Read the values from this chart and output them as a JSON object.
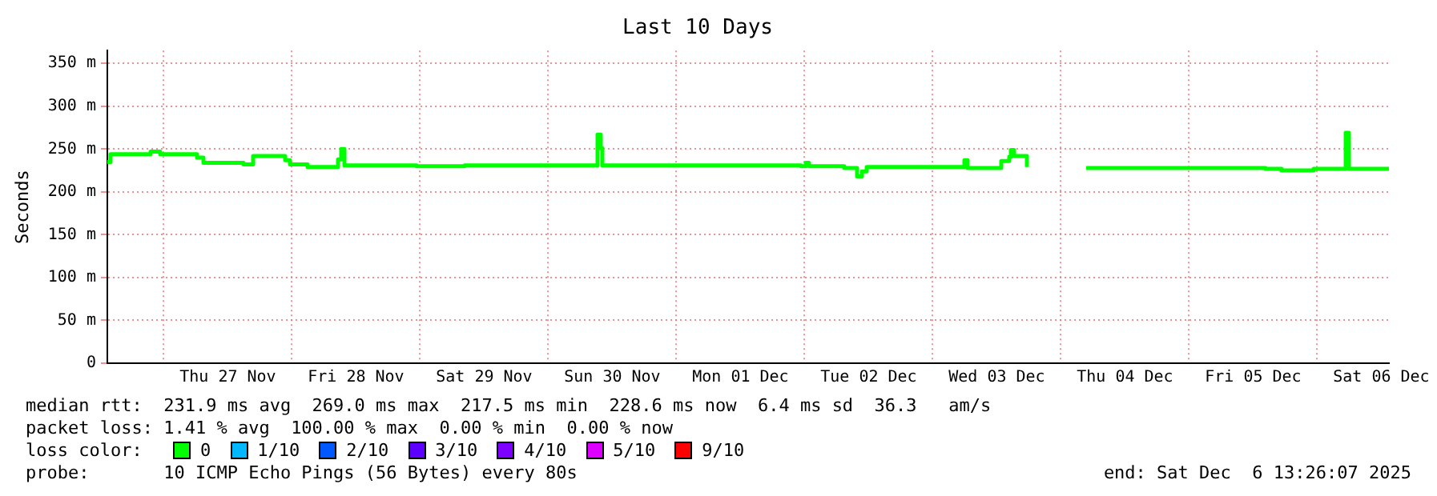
{
  "chart_data": {
    "type": "step",
    "title": "Last 10 Days",
    "ylabel": "Seconds",
    "x": [
      "2025-11-26T13:26",
      "2025-11-26T14:02",
      "2025-11-26T21:32",
      "2025-11-26T23:20",
      "2025-11-27T06:14",
      "2025-11-27T07:26",
      "2025-11-27T14:56",
      "2025-11-27T16:44",
      "2025-11-27T22:44",
      "2025-11-27T23:38",
      "2025-11-28T02:56",
      "2025-11-28T08:38",
      "2025-11-28T09:14",
      "2025-11-28T09:50",
      "2025-11-28T23:20",
      "2025-11-29T08:20",
      "2025-11-30T09:14",
      "2025-11-30T09:50",
      "2025-11-30T10:08",
      "2025-12-01T23:20",
      "2025-12-02T00:14",
      "2025-12-02T00:50",
      "2025-12-02T07:26",
      "2025-12-02T09:50",
      "2025-12-02T10:44",
      "2025-12-02T11:38",
      "2025-12-03T05:56",
      "2025-12-03T06:32",
      "2025-12-03T12:50",
      "2025-12-03T14:20",
      "2025-12-03T14:38",
      "2025-12-03T15:14",
      "2025-12-03T17:38",
      "2025-12-04T03:14",
      "2025-12-04T04:44",
      "2025-12-05T14:20",
      "2025-12-05T17:20",
      "2025-12-05T23:20",
      "2025-12-06T05:20",
      "2025-12-06T05:56",
      "2025-12-06T13:26"
    ],
    "series": [
      {
        "color": "#00ff00",
        "values": [
          235,
          244,
          247,
          244,
          240,
          234,
          232,
          242,
          237,
          232,
          229,
          238,
          250,
          231,
          230,
          231,
          267,
          251,
          231,
          230,
          234,
          230,
          228,
          218,
          224,
          229,
          237,
          228,
          236,
          241,
          249,
          242,
          229,
          null,
          228,
          227,
          225,
          227,
          269,
          227,
          228
        ]
      }
    ],
    "xlim": [
      "2025-11-26T13:26",
      "2025-12-06T13:26"
    ],
    "xticks": [
      {
        "value": "2025-11-27T00:00",
        "label": null
      },
      {
        "value": "2025-11-27T12:00",
        "label": "Thu 27 Nov"
      },
      {
        "value": "2025-11-28T00:00",
        "label": null
      },
      {
        "value": "2025-11-28T12:00",
        "label": "Fri 28 Nov"
      },
      {
        "value": "2025-11-29T00:00",
        "label": null
      },
      {
        "value": "2025-11-29T12:00",
        "label": "Sat 29 Nov"
      },
      {
        "value": "2025-11-30T00:00",
        "label": null
      },
      {
        "value": "2025-11-30T12:00",
        "label": "Sun 30 Nov"
      },
      {
        "value": "2025-12-01T00:00",
        "label": null
      },
      {
        "value": "2025-12-01T12:00",
        "label": "Mon 01 Dec"
      },
      {
        "value": "2025-12-02T00:00",
        "label": null
      },
      {
        "value": "2025-12-02T12:00",
        "label": "Tue 02 Dec"
      },
      {
        "value": "2025-12-03T00:00",
        "label": null
      },
      {
        "value": "2025-12-03T12:00",
        "label": "Wed 03 Dec"
      },
      {
        "value": "2025-12-04T00:00",
        "label": null
      },
      {
        "value": "2025-12-04T12:00",
        "label": "Thu 04 Dec"
      },
      {
        "value": "2025-12-05T00:00",
        "label": null
      },
      {
        "value": "2025-12-05T12:00",
        "label": "Fri 05 Dec"
      },
      {
        "value": "2025-12-06T00:00",
        "label": null
      },
      {
        "value": "2025-12-06T12:00",
        "label": "Sat 06 Dec"
      }
    ],
    "ylim": [
      0,
      365
    ],
    "yticks": [
      {
        "value": 0,
        "label": "0"
      },
      {
        "value": 50,
        "label": "50 m"
      },
      {
        "value": 100,
        "label": "100 m"
      },
      {
        "value": 150,
        "label": "150 m"
      },
      {
        "value": 200,
        "label": "200 m"
      },
      {
        "value": 250,
        "label": "250 m"
      },
      {
        "value": 300,
        "label": "300 m"
      },
      {
        "value": 350,
        "label": "350 m"
      }
    ],
    "grid": true,
    "legend": false,
    "annotations": [
      "median rtt:  231.9 ms avg  269.0 ms max  217.5 ms min  228.6 ms now  6.4 ms sd  36.3   am/s",
      "packet loss: 1.41 % avg  100.00 % max  0.00 % min  0.00 % now",
      "loss color:",
      "0",
      "1/10",
      "2/10",
      "3/10",
      "4/10",
      "5/10",
      "9/10",
      "probe:       10 ICMP Echo Pings (56 Bytes) every 80s",
      "end: Sat Dec  6 13:26:07 2025"
    ]
  }
}
